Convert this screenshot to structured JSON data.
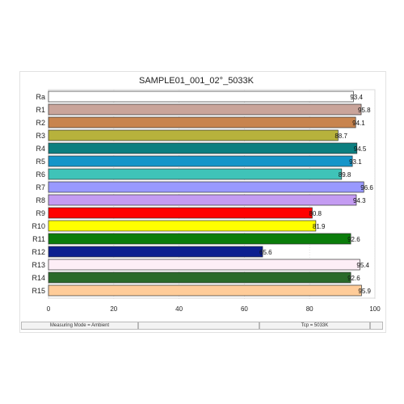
{
  "chart_data": {
    "type": "bar",
    "orientation": "horizontal",
    "title": "SAMPLE01_001_02°_5033K",
    "categories": [
      "Ra",
      "R1",
      "R2",
      "R3",
      "R4",
      "R5",
      "R6",
      "R7",
      "R8",
      "R9",
      "R10",
      "R11",
      "R12",
      "R13",
      "R14",
      "R15"
    ],
    "values": [
      93.4,
      95.8,
      94.1,
      88.7,
      94.5,
      93.1,
      89.8,
      96.6,
      94.3,
      80.8,
      81.9,
      92.6,
      65.6,
      95.4,
      92.6,
      95.9
    ],
    "value_labels": [
      "93.4",
      "95.8",
      "94.1",
      "88.7",
      "94.5",
      "93.1",
      "89.8",
      "96.6",
      "94.3",
      "80.8",
      "81.9",
      "92.6",
      "65.6",
      "95.4",
      "92.6",
      "95.9"
    ],
    "colors": [
      "#ffffff",
      "#c9a49a",
      "#c8844e",
      "#b7b23c",
      "#0c7f80",
      "#1595c9",
      "#3fc3b8",
      "#9999ff",
      "#c49cf2",
      "#ff0000",
      "#ffff00",
      "#0b7d0b",
      "#0c1f8f",
      "#fdeef6",
      "#2a6a2a",
      "#ffcc99"
    ],
    "xlim": [
      0,
      100
    ],
    "xticks": [
      0,
      20,
      40,
      60,
      80,
      100
    ],
    "grid": true
  },
  "statusbar": {
    "measuring_mode": "Measuring Mode = Ambient",
    "tcp": "Tcp = 5033K"
  }
}
